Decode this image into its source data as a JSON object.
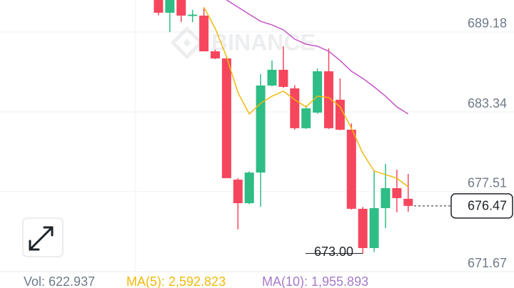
{
  "chart_data": {
    "type": "candlestick",
    "watermark": "BINANCE",
    "up_color": "#2ebd85",
    "down_color": "#f6465d",
    "ylim": [
      671.67,
      691.52
    ],
    "yticks": [
      689.18,
      683.34,
      677.51,
      671.67
    ],
    "grid": true,
    "candles": [
      {
        "open": 691.7,
        "high": 692.0,
        "low": 690.4,
        "close": 690.59
      },
      {
        "open": 690.59,
        "high": 691.8,
        "low": 689.18,
        "close": 691.6
      },
      {
        "open": 691.6,
        "high": 691.8,
        "low": 689.9,
        "close": 690.38
      },
      {
        "open": 690.35,
        "high": 690.8,
        "low": 689.9,
        "close": 690.45
      },
      {
        "open": 690.38,
        "high": 690.9,
        "low": 687.77,
        "close": 687.77
      },
      {
        "open": 687.77,
        "high": 687.9,
        "low": 687.2,
        "close": 687.25
      },
      {
        "open": 687.25,
        "high": 687.4,
        "low": 678.5,
        "close": 678.5
      },
      {
        "open": 678.39,
        "high": 678.5,
        "low": 674.75,
        "close": 676.67
      },
      {
        "open": 676.67,
        "high": 679.0,
        "low": 676.6,
        "close": 678.91
      },
      {
        "open": 678.91,
        "high": 686.1,
        "low": 676.41,
        "close": 685.27
      },
      {
        "open": 685.27,
        "high": 687.1,
        "low": 685.2,
        "close": 686.42
      },
      {
        "open": 686.42,
        "high": 688.14,
        "low": 685.1,
        "close": 685.17
      },
      {
        "open": 685.06,
        "high": 685.3,
        "low": 682.04,
        "close": 682.15
      },
      {
        "open": 682.15,
        "high": 683.8,
        "low": 682.1,
        "close": 683.6
      },
      {
        "open": 683.29,
        "high": 686.5,
        "low": 683.2,
        "close": 686.31
      },
      {
        "open": 686.31,
        "high": 687.98,
        "low": 682.1,
        "close": 682.15
      },
      {
        "open": 684.23,
        "high": 685.79,
        "low": 682.0,
        "close": 682.04
      },
      {
        "open": 682.04,
        "high": 682.5,
        "low": 676.2,
        "close": 676.26
      },
      {
        "open": 676.26,
        "high": 676.4,
        "low": 673.0,
        "close": 673.39
      },
      {
        "open": 673.39,
        "high": 679.02,
        "low": 673.1,
        "close": 676.31
      },
      {
        "open": 676.31,
        "high": 679.54,
        "low": 674.85,
        "close": 677.77
      },
      {
        "open": 677.77,
        "high": 679.12,
        "low": 676.0,
        "close": 677.04
      },
      {
        "open": 676.99,
        "high": 678.81,
        "low": 676.05,
        "close": 676.47
      }
    ],
    "series": [
      {
        "color": "#f0b90b",
        "values": [
          null,
          null,
          null,
          null,
          691.0,
          689.44,
          687.36,
          684.75,
          683.19,
          683.97,
          684.49,
          684.86,
          684.23,
          683.71,
          684.49,
          684.39,
          683.71,
          682.15,
          680.32,
          679.02,
          678.76,
          678.5,
          677.87
        ]
      },
      {
        "color": "#c653c6",
        "values": [
          null,
          null,
          null,
          null,
          null,
          null,
          691.52,
          691.0,
          690.48,
          689.96,
          689.7,
          689.34,
          688.66,
          688.29,
          688.14,
          687.77,
          687.1,
          686.31,
          685.79,
          685.17,
          684.49,
          683.71,
          683.19
        ]
      }
    ],
    "last_price": 676.47,
    "low_annotation": {
      "value": 673.0,
      "label": "673.00"
    },
    "footer": {
      "vol": "Vol: 622.937",
      "ma5": "MA(5): 2,592.823",
      "ma10": "MA(10): 1,955.893"
    }
  }
}
